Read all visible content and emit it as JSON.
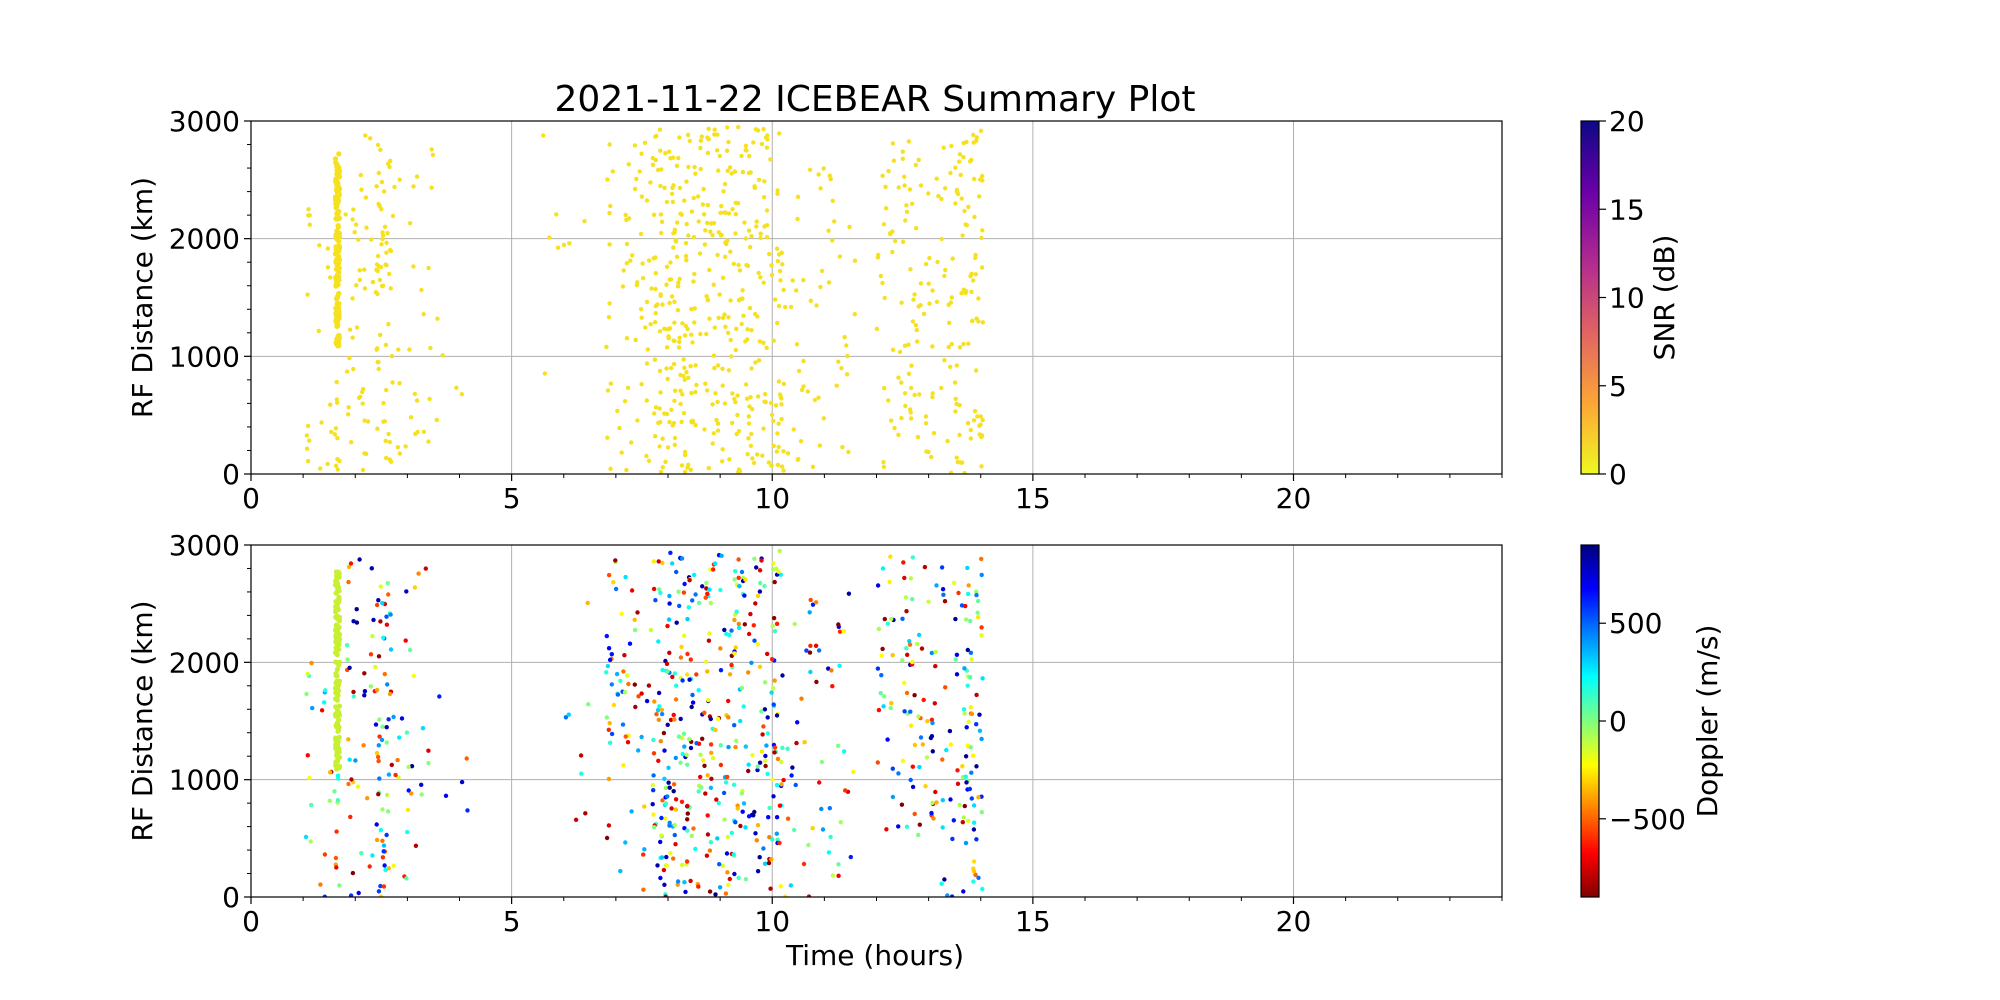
{
  "figure": {
    "title": "2021-11-22 ICEBEAR Summary Plot",
    "xlabel": "Time (hours)"
  },
  "chart_data": [
    {
      "type": "scatter",
      "panel": "top",
      "ylabel": "RF Distance (km)",
      "xlim": [
        0,
        24
      ],
      "ylim": [
        0,
        3000
      ],
      "x_ticks": [
        0,
        5,
        10,
        15,
        20
      ],
      "x_tick_labels": [
        "0",
        "5",
        "10",
        "15",
        "20"
      ],
      "y_ticks": [
        0,
        1000,
        2000,
        3000
      ],
      "y_tick_labels": [
        "0",
        "1000",
        "2000",
        "3000"
      ],
      "grid": true,
      "point_color": "#f5e11f",
      "colorbar": {
        "label": "SNR (dB)",
        "range": [
          0,
          20
        ],
        "ticks": [
          0,
          5,
          10,
          15,
          20
        ],
        "tick_labels": [
          "0",
          "5",
          "10",
          "15",
          "20"
        ],
        "colormap": "plasma_r",
        "gradient_bottom_to_top": [
          "#f0f921",
          "#fca636",
          "#e16462",
          "#b12a90",
          "#6a00a8",
          "#0d0887"
        ]
      },
      "clusters": [
        {
          "x_range": [
            1.05,
            1.25
          ],
          "y_range": [
            0,
            2300
          ],
          "count": 10
        },
        {
          "x_range": [
            1.3,
            1.55
          ],
          "y_range": [
            0,
            2000
          ],
          "count": 10
        },
        {
          "x_range": [
            1.62,
            1.7
          ],
          "y_range": [
            1080,
            2770
          ],
          "count": 150,
          "dense_column": true
        },
        {
          "x_range": [
            1.6,
            1.7
          ],
          "y_range": [
            0,
            1050
          ],
          "count": 10
        },
        {
          "x_range": [
            1.8,
            2.4
          ],
          "y_range": [
            0,
            2900
          ],
          "count": 40
        },
        {
          "x_range": [
            2.4,
            2.7
          ],
          "y_range": [
            0,
            2850
          ],
          "count": 55
        },
        {
          "x_range": [
            2.7,
            3.5
          ],
          "y_range": [
            0,
            2900
          ],
          "count": 30
        },
        {
          "x_range": [
            3.5,
            4.2
          ],
          "y_range": [
            400,
            1800
          ],
          "count": 5
        },
        {
          "x_range": [
            5.6,
            6.5
          ],
          "y_range": [
            500,
            2900
          ],
          "count": 8
        },
        {
          "x_range": [
            6.8,
            7.7
          ],
          "y_range": [
            0,
            2950
          ],
          "count": 60
        },
        {
          "x_range": [
            7.7,
            8.5
          ],
          "y_range": [
            0,
            2950
          ],
          "count": 150
        },
        {
          "x_range": [
            8.5,
            9.3
          ],
          "y_range": [
            0,
            2950
          ],
          "count": 110
        },
        {
          "x_range": [
            9.3,
            10.2
          ],
          "y_range": [
            0,
            2950
          ],
          "count": 130
        },
        {
          "x_range": [
            10.2,
            11.6
          ],
          "y_range": [
            0,
            2600
          ],
          "count": 55
        },
        {
          "x_range": [
            12.0,
            12.4
          ],
          "y_range": [
            0,
            2950
          ],
          "count": 25
        },
        {
          "x_range": [
            12.4,
            13.1
          ],
          "y_range": [
            0,
            2900
          ],
          "count": 60
        },
        {
          "x_range": [
            13.1,
            13.5
          ],
          "y_range": [
            0,
            2900
          ],
          "count": 25
        },
        {
          "x_range": [
            13.5,
            14.05
          ],
          "y_range": [
            0,
            2950
          ],
          "count": 80
        }
      ]
    },
    {
      "type": "scatter",
      "panel": "bottom",
      "ylabel": "RF Distance (km)",
      "xlabel": "Time (hours)",
      "xlim": [
        0,
        24
      ],
      "ylim": [
        0,
        3000
      ],
      "x_ticks": [
        0,
        5,
        10,
        15,
        20
      ],
      "x_tick_labels": [
        "0",
        "5",
        "10",
        "15",
        "20"
      ],
      "y_ticks": [
        0,
        1000,
        2000,
        3000
      ],
      "y_tick_labels": [
        "0",
        "1000",
        "2000",
        "3000"
      ],
      "grid": true,
      "dense_column_color": "#c8f032",
      "colorbar": {
        "label": "Doppler (m/s)",
        "range": [
          -900,
          900
        ],
        "ticks": [
          -500,
          0,
          500
        ],
        "tick_labels": [
          "−500",
          "0",
          "500"
        ],
        "colormap": "jet_r",
        "gradient_bottom_to_top": [
          "#800000",
          "#ff0000",
          "#ff8000",
          "#ffff00",
          "#80ff80",
          "#00ffff",
          "#0080ff",
          "#0000ff",
          "#000080"
        ]
      },
      "clusters": [
        {
          "x_range": [
            1.05,
            1.25
          ],
          "y_range": [
            0,
            2300
          ],
          "count": 10
        },
        {
          "x_range": [
            1.3,
            1.55
          ],
          "y_range": [
            0,
            2000
          ],
          "count": 10
        },
        {
          "x_range": [
            1.62,
            1.7
          ],
          "y_range": [
            1080,
            2770
          ],
          "count": 150,
          "dense_column": true
        },
        {
          "x_range": [
            1.6,
            1.7
          ],
          "y_range": [
            0,
            1050
          ],
          "count": 10
        },
        {
          "x_range": [
            1.8,
            2.4
          ],
          "y_range": [
            0,
            2900
          ],
          "count": 40
        },
        {
          "x_range": [
            2.4,
            2.7
          ],
          "y_range": [
            0,
            2850
          ],
          "count": 55
        },
        {
          "x_range": [
            2.7,
            3.5
          ],
          "y_range": [
            0,
            2900
          ],
          "count": 30
        },
        {
          "x_range": [
            3.5,
            4.2
          ],
          "y_range": [
            400,
            1800
          ],
          "count": 5
        },
        {
          "x_range": [
            5.6,
            6.5
          ],
          "y_range": [
            500,
            2900
          ],
          "count": 8
        },
        {
          "x_range": [
            6.8,
            7.7
          ],
          "y_range": [
            0,
            2950
          ],
          "count": 60
        },
        {
          "x_range": [
            7.7,
            8.5
          ],
          "y_range": [
            0,
            2950
          ],
          "count": 150
        },
        {
          "x_range": [
            8.5,
            9.3
          ],
          "y_range": [
            0,
            2950
          ],
          "count": 110
        },
        {
          "x_range": [
            9.3,
            10.2
          ],
          "y_range": [
            0,
            2950
          ],
          "count": 130
        },
        {
          "x_range": [
            10.2,
            11.6
          ],
          "y_range": [
            0,
            2600
          ],
          "count": 55
        },
        {
          "x_range": [
            12.0,
            12.4
          ],
          "y_range": [
            0,
            2950
          ],
          "count": 25
        },
        {
          "x_range": [
            12.4,
            13.1
          ],
          "y_range": [
            0,
            2900
          ],
          "count": 60
        },
        {
          "x_range": [
            13.1,
            13.5
          ],
          "y_range": [
            0,
            2900
          ],
          "count": 25
        },
        {
          "x_range": [
            13.5,
            14.05
          ],
          "y_range": [
            0,
            2950
          ],
          "count": 80
        }
      ]
    }
  ]
}
